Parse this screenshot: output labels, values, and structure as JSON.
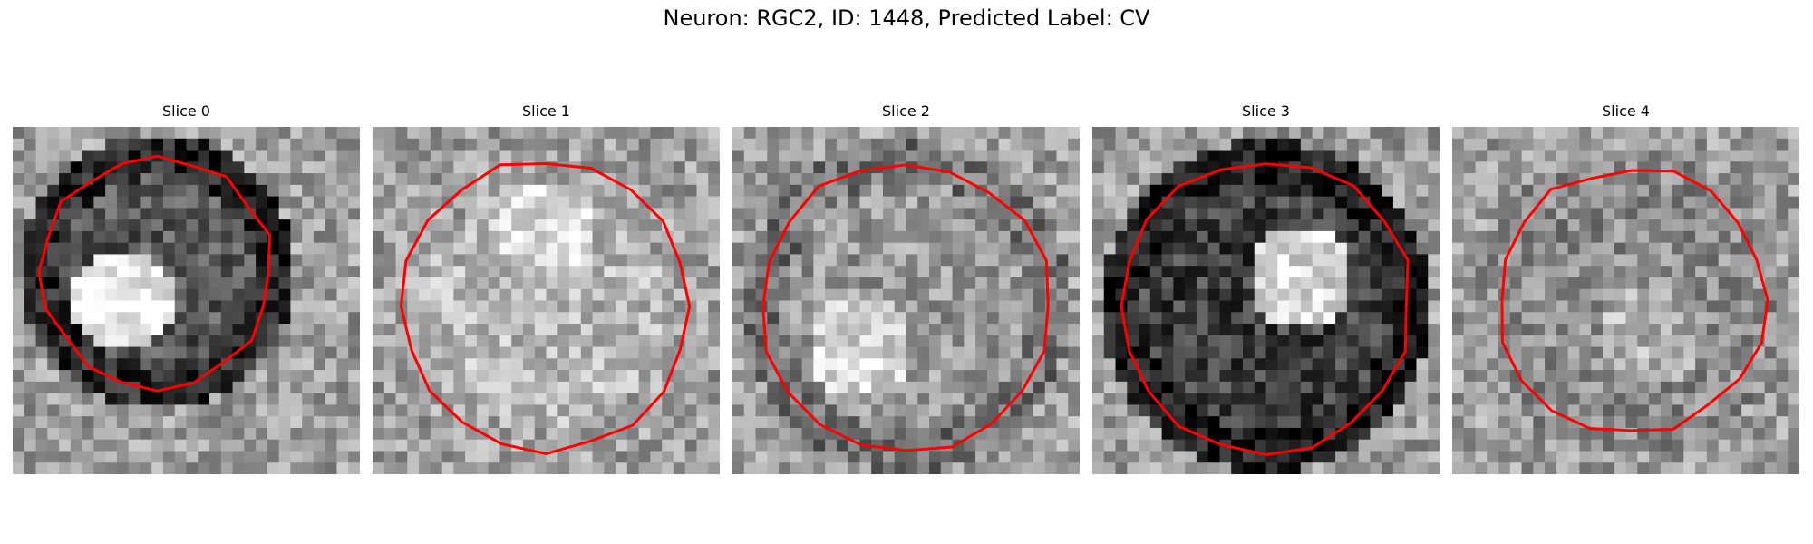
{
  "figure": {
    "title": "Neuron: RGC2, ID: 1448, Predicted Label: CV",
    "contour_color": "#ff0000"
  },
  "panels": [
    {
      "title": "Slice 0",
      "image": "grayscale-micrograph-slice-0",
      "contour": "red-cell-outline"
    },
    {
      "title": "Slice 1",
      "image": "grayscale-micrograph-slice-1",
      "contour": "red-cell-outline"
    },
    {
      "title": "Slice 2",
      "image": "grayscale-micrograph-slice-2",
      "contour": "red-cell-outline"
    },
    {
      "title": "Slice 3",
      "image": "grayscale-micrograph-slice-3",
      "contour": "red-cell-outline"
    },
    {
      "title": "Slice 4",
      "image": "grayscale-micrograph-slice-4",
      "contour": "red-cell-outline"
    }
  ]
}
